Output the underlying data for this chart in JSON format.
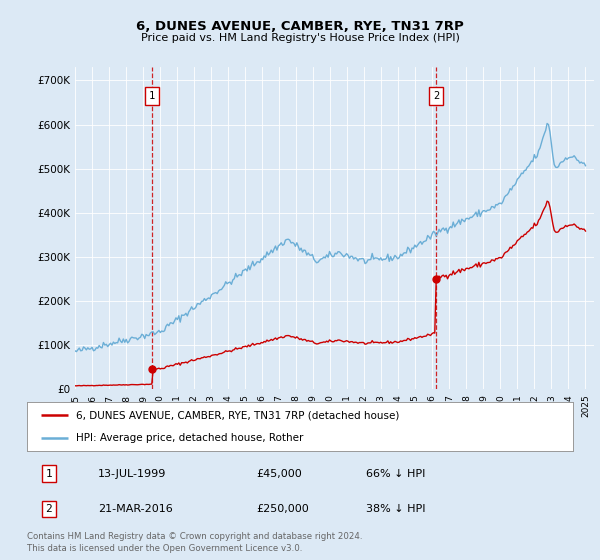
{
  "title": "6, DUNES AVENUE, CAMBER, RYE, TN31 7RP",
  "subtitle": "Price paid vs. HM Land Registry's House Price Index (HPI)",
  "bg_color": "#dce9f5",
  "plot_bg_color": "#dce9f5",
  "sale1_x": 1999.53,
  "sale1_price": 45000,
  "sale1_label": "1",
  "sale2_x": 2016.22,
  "sale2_price": 250000,
  "sale2_label": "2",
  "hpi_color": "#6baed6",
  "price_color": "#cc0000",
  "vline_color": "#cc0000",
  "legend1": "6, DUNES AVENUE, CAMBER, RYE, TN31 7RP (detached house)",
  "legend2": "HPI: Average price, detached house, Rother",
  "table_row1": [
    "1",
    "13-JUL-1999",
    "£45,000",
    "66% ↓ HPI"
  ],
  "table_row2": [
    "2",
    "21-MAR-2016",
    "£250,000",
    "38% ↓ HPI"
  ],
  "footer": "Contains HM Land Registry data © Crown copyright and database right 2024.\nThis data is licensed under the Open Government Licence v3.0.",
  "ylim": [
    0,
    730000
  ],
  "xlim_start": 1995.0,
  "xlim_end": 2025.5,
  "ylabel_ticks": [
    0,
    100000,
    200000,
    300000,
    400000,
    500000,
    600000,
    700000
  ],
  "xtick_years": [
    1995,
    1996,
    1997,
    1998,
    1999,
    2000,
    2001,
    2002,
    2003,
    2004,
    2005,
    2006,
    2007,
    2008,
    2009,
    2010,
    2011,
    2012,
    2013,
    2014,
    2015,
    2016,
    2017,
    2018,
    2019,
    2020,
    2021,
    2022,
    2023,
    2024,
    2025
  ]
}
